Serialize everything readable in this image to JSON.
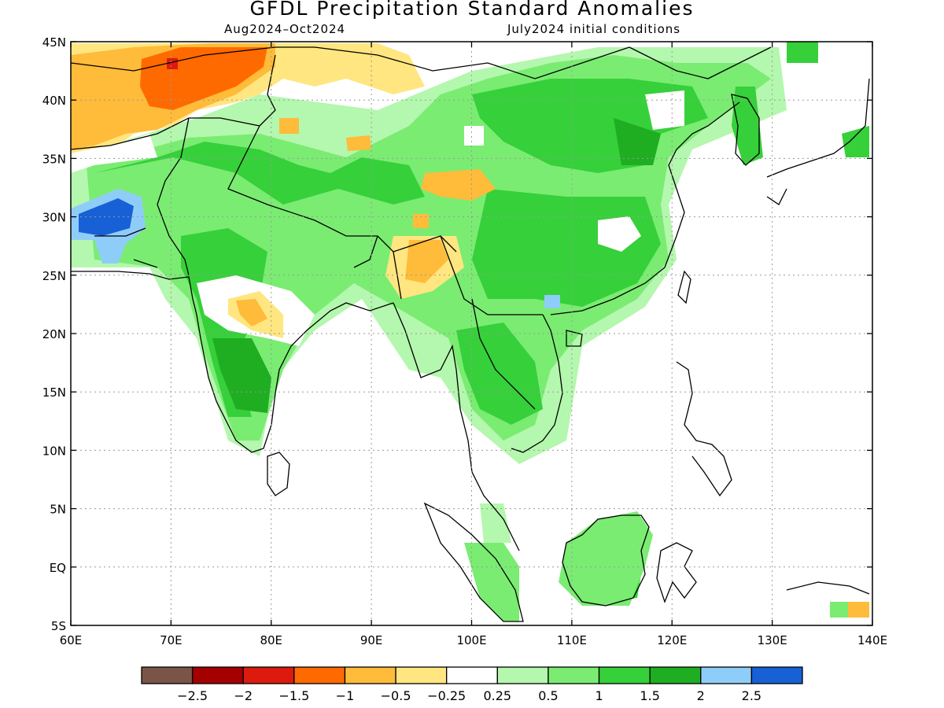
{
  "title": "GFDL Precipitation Standard Anomalies",
  "subtitle_left": "Aug2024–Oct2024",
  "subtitle_right": "July2024 initial conditions",
  "map": {
    "lon_range": [
      60,
      140
    ],
    "lat_range": [
      -5,
      45
    ],
    "x_tick_labels": [
      "60E",
      "70E",
      "80E",
      "90E",
      "100E",
      "110E",
      "120E",
      "130E",
      "140E"
    ],
    "y_tick_labels": [
      "45N",
      "40N",
      "35N",
      "30N",
      "25N",
      "20N",
      "15N",
      "10N",
      "5N",
      "EQ",
      "5S"
    ]
  },
  "legend": {
    "colors": [
      "#7a5547",
      "#a50000",
      "#dd1a0e",
      "#ff6a00",
      "#ffbb3a",
      "#ffe680",
      "#ffffff",
      "#b4f7ae",
      "#7aec72",
      "#36d03a",
      "#1fad22",
      "#8fcdf9",
      "#1760d6"
    ],
    "labels": [
      "−2.5",
      "−2",
      "−1.5",
      "−1",
      "−0.5",
      "−0.25",
      "0.25",
      "0.5",
      "1",
      "1.5",
      "2",
      "2.5"
    ]
  }
}
